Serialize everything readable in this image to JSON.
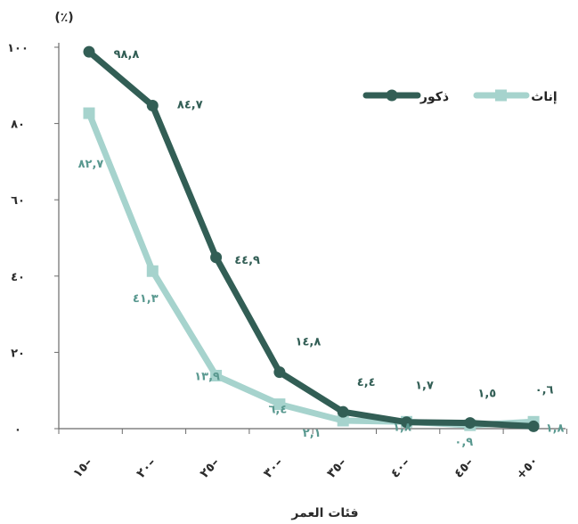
{
  "chart_data": {
    "type": "line",
    "xlabel": "فئات العمر",
    "ylabel": "(٪)",
    "ylim": [
      0,
      100
    ],
    "yticks": [
      0,
      20,
      40,
      60,
      80,
      100
    ],
    "ytick_labels": [
      "٠",
      "٢٠",
      "٤٠",
      "٦٠",
      "٨٠",
      "١٠٠"
    ],
    "categories": [
      "١٥–",
      "٢٠–",
      "٢٥–",
      "٣٠–",
      "٣٥–",
      "٤٠–",
      "٤٥–",
      "+٥٠"
    ],
    "grid": false,
    "legend_position": "top-right",
    "series": [
      {
        "name": "ذكور",
        "color": "#325e55",
        "marker": "circle",
        "values": [
          98.8,
          84.7,
          44.9,
          14.8,
          4.4,
          1.7,
          1.5,
          0.6
        ],
        "labels": [
          "٩٨,٨",
          "٨٤,٧",
          "٤٤,٩",
          "١٤,٨",
          "٤,٤",
          "١,٧",
          "١,٥",
          "٠,٦"
        ]
      },
      {
        "name": "إناث",
        "color": "#a6d3cd",
        "marker": "square",
        "values": [
          82.7,
          41.3,
          13.9,
          6.4,
          2.1,
          1.8,
          0.9,
          1.8
        ],
        "labels": [
          "٨٢,٧",
          "٤١,٣",
          "١٣,٩",
          "٦,٤",
          "٢,١",
          "١,٨",
          "٠,٩",
          "١,٨"
        ]
      }
    ]
  }
}
